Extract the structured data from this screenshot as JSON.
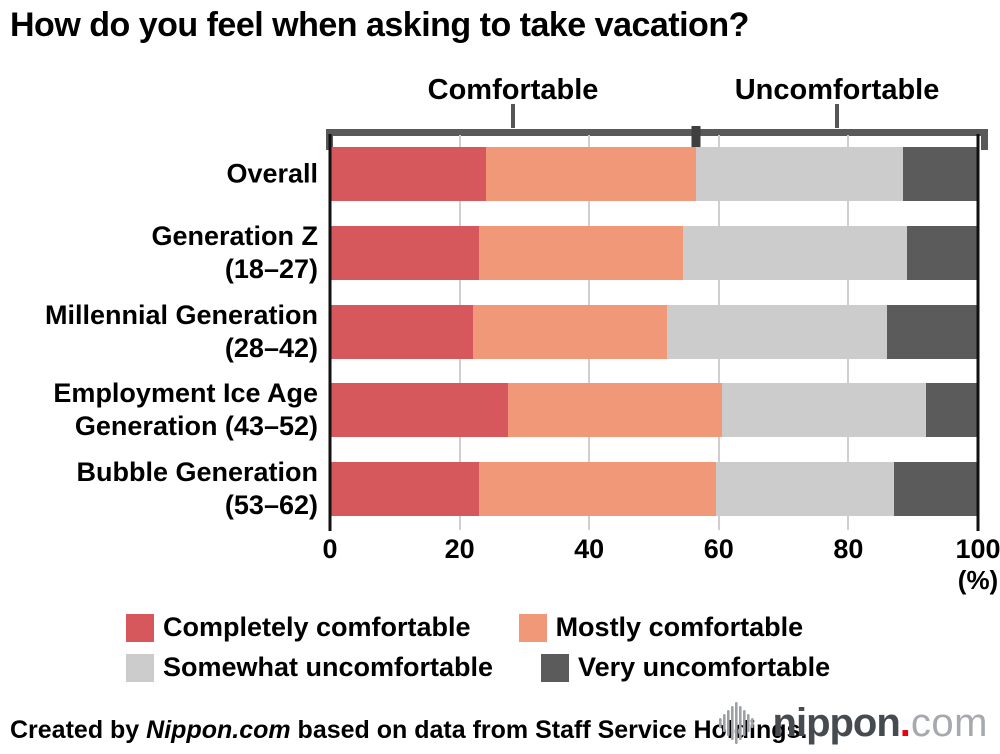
{
  "title": "How do you feel when asking to take vacation?",
  "bracket": {
    "comfortable_label": "Comfortable",
    "uncomfortable_label": "Uncomfortable",
    "divider_percent": 56.5
  },
  "chart_data": {
    "type": "bar",
    "stacked": true,
    "orientation": "horizontal",
    "xlim": [
      0,
      100
    ],
    "x_ticks": [
      0,
      20,
      40,
      60,
      80,
      100
    ],
    "x_unit": "(%)",
    "grid": true,
    "categories": [
      [
        "Overall"
      ],
      [
        "Generation Z",
        "(18–27)"
      ],
      [
        "Millennial Generation",
        "(28–42)"
      ],
      [
        "Employment Ice Age",
        "Generation (43–52)"
      ],
      [
        "Bubble Generation",
        "(53–62)"
      ]
    ],
    "series": [
      {
        "name": "Completely comfortable",
        "color": "#d6575c",
        "values": [
          24,
          23,
          22,
          27.5,
          23
        ]
      },
      {
        "name": "Mostly comfortable",
        "color": "#f19879",
        "values": [
          32.5,
          31.5,
          30,
          33,
          36.5
        ]
      },
      {
        "name": "Somewhat uncomfortable",
        "color": "#cccccc",
        "values": [
          32,
          34.5,
          34,
          31.5,
          27.5
        ]
      },
      {
        "name": "Very uncomfortable",
        "color": "#5b5b5b",
        "values": [
          11.5,
          11,
          14,
          8,
          13
        ]
      }
    ]
  },
  "legend_rows": [
    [
      0,
      1
    ],
    [
      2,
      3
    ]
  ],
  "footer": {
    "credit_prefix": "Created by ",
    "credit_source": "Nippon.com",
    "credit_suffix": " based on data from Staff Service Holdings.",
    "logo": {
      "icon": "soundwave-bars-icon",
      "text_main": "nippon",
      "text_dot": ".",
      "text_suffix": "com",
      "accent_color": "#e60012"
    }
  }
}
